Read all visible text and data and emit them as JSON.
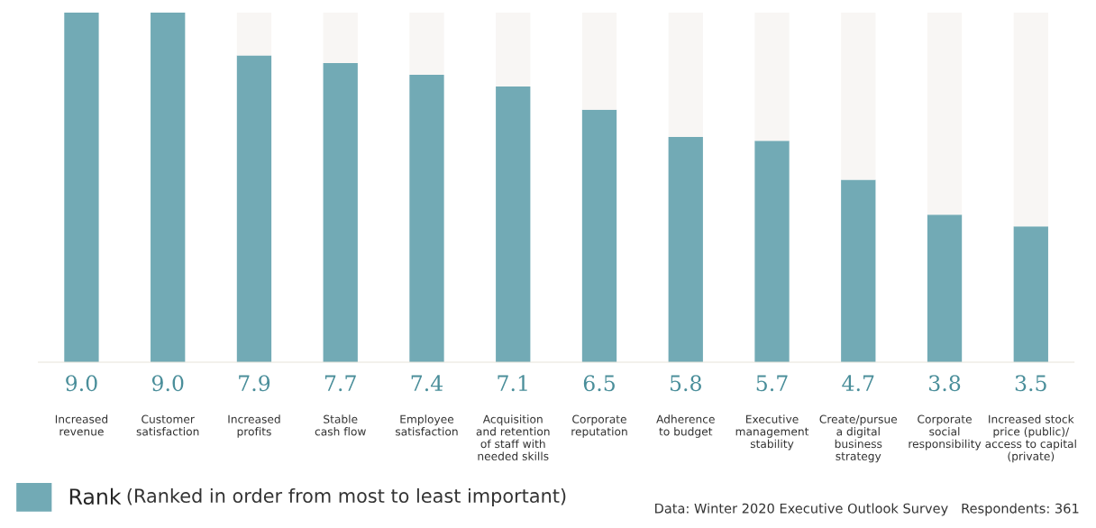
{
  "chart_data": {
    "type": "bar",
    "stacked": true,
    "categories": [
      "Increased\nrevenue",
      "Customer\nsatisfaction",
      "Increased\nprofits",
      "Stable\ncash flow",
      "Employee\nsatisfaction",
      "Acquisition\nand retention\nof staff with\nneeded skills",
      "Corporate\nreputation",
      "Adherence\nto budget",
      "Executive\nmanagement\nstability",
      "Create/pursue\na digital\nbusiness\nstrategy",
      "Corporate\nsocial\nresponsibility",
      "Increased stock\nprice (public)/\naccess to capital\n(private)"
    ],
    "series": [
      {
        "name": "Rank",
        "color": "#72aab5",
        "values": [
          9.0,
          9.0,
          7.9,
          7.7,
          7.4,
          7.1,
          6.5,
          5.8,
          5.7,
          4.7,
          3.8,
          3.5
        ],
        "value_labels": [
          "9.0",
          "9.0",
          "7.9",
          "7.7",
          "7.4",
          "7.1",
          "6.5",
          "5.8",
          "5.7",
          "4.7",
          "3.8",
          "3.5"
        ]
      },
      {
        "color": "#f8f6f4",
        "values": [
          0,
          0,
          1.1,
          1.3,
          1.6,
          1.9,
          2.5,
          3.2,
          3.3,
          4.3,
          5.2,
          5.5
        ]
      }
    ],
    "legend": "bottom left",
    "annotations": [
      "(Ranked in order from most to least important)",
      "Data: Winter 2020 Executive Outlook Survey   Respondents: 361"
    ]
  }
}
